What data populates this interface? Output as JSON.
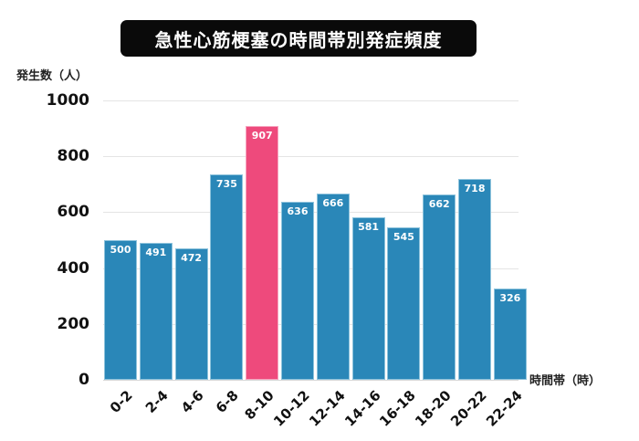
{
  "chart_data": {
    "type": "bar",
    "title": "急性心筋梗塞の時間帯別発症頻度",
    "xlabel": "時間帯（時）",
    "ylabel": "発生数（人）",
    "categories": [
      "0-2",
      "2-4",
      "4-6",
      "6-8",
      "8-10",
      "10-12",
      "12-14",
      "14-16",
      "16-18",
      "18-20",
      "20-22",
      "22-24"
    ],
    "values": [
      500,
      491,
      472,
      735,
      907,
      636,
      666,
      581,
      545,
      662,
      718,
      326
    ],
    "ylim": [
      0,
      1000
    ],
    "yticks": [
      "0",
      "200",
      "400",
      "600",
      "800",
      "1000"
    ],
    "grid": true,
    "legend": null,
    "highlight_index": 4,
    "colors": {
      "bar": "#2a87b8",
      "highlight": "#ee4a7c",
      "title_bg": "#0a0a0a",
      "grid": "#e4e4e4"
    }
  },
  "labels": {
    "title": "急性心筋梗塞の時間帯別発症頻度",
    "y_axis_title": "発生数（人）",
    "x_axis_title": "時間帯（時）",
    "yticks": [
      "1000",
      "800",
      "600",
      "400",
      "200",
      "0"
    ],
    "bars": [
      {
        "cat": "0-2",
        "val": "500"
      },
      {
        "cat": "2-4",
        "val": "491"
      },
      {
        "cat": "4-6",
        "val": "472"
      },
      {
        "cat": "6-8",
        "val": "735"
      },
      {
        "cat": "8-10",
        "val": "907"
      },
      {
        "cat": "10-12",
        "val": "636"
      },
      {
        "cat": "12-14",
        "val": "666"
      },
      {
        "cat": "14-16",
        "val": "581"
      },
      {
        "cat": "16-18",
        "val": "545"
      },
      {
        "cat": "18-20",
        "val": "662"
      },
      {
        "cat": "20-22",
        "val": "718"
      },
      {
        "cat": "22-24",
        "val": "326"
      }
    ]
  }
}
